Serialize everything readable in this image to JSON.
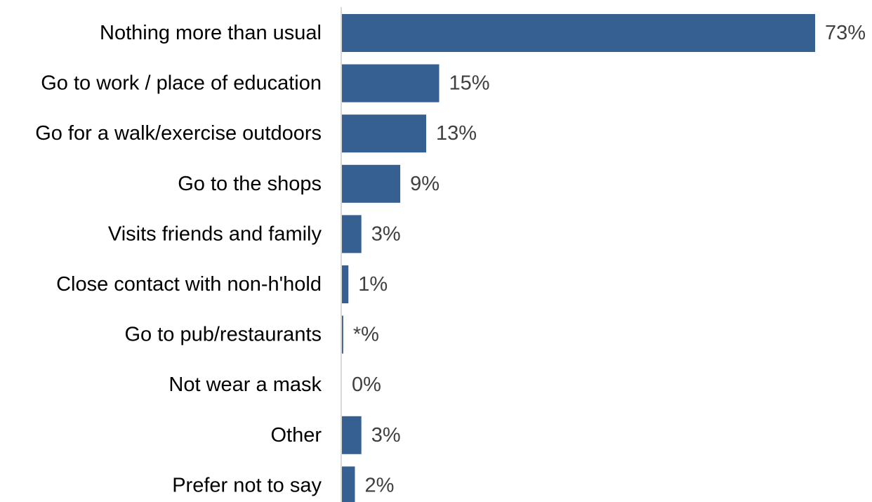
{
  "chart_data": {
    "type": "bar",
    "orientation": "horizontal",
    "categories": [
      "Nothing more than usual",
      "Go to work / place of education",
      "Go for a walk/exercise outdoors",
      "Go to the shops",
      "Visits friends and family",
      "Close contact with non-h'hold",
      "Go to pub/restaurants",
      "Not wear a mask",
      "Other",
      "Prefer not to say"
    ],
    "values": [
      73,
      15,
      13,
      9,
      3,
      1,
      0.2,
      0,
      3,
      2
    ],
    "value_labels": [
      "73%",
      "15%",
      "13%",
      "9%",
      "3%",
      "1%",
      "*%",
      "0%",
      "3%",
      "2%"
    ],
    "unit": "%",
    "xlim": [
      0,
      73
    ],
    "title": "",
    "xlabel": "",
    "ylabel": "",
    "grid": false,
    "legend": "none",
    "bar_color": "#366092",
    "axis_color": "#d9d9d9",
    "value_label_color": "#404040",
    "category_label_color": "#000000"
  }
}
